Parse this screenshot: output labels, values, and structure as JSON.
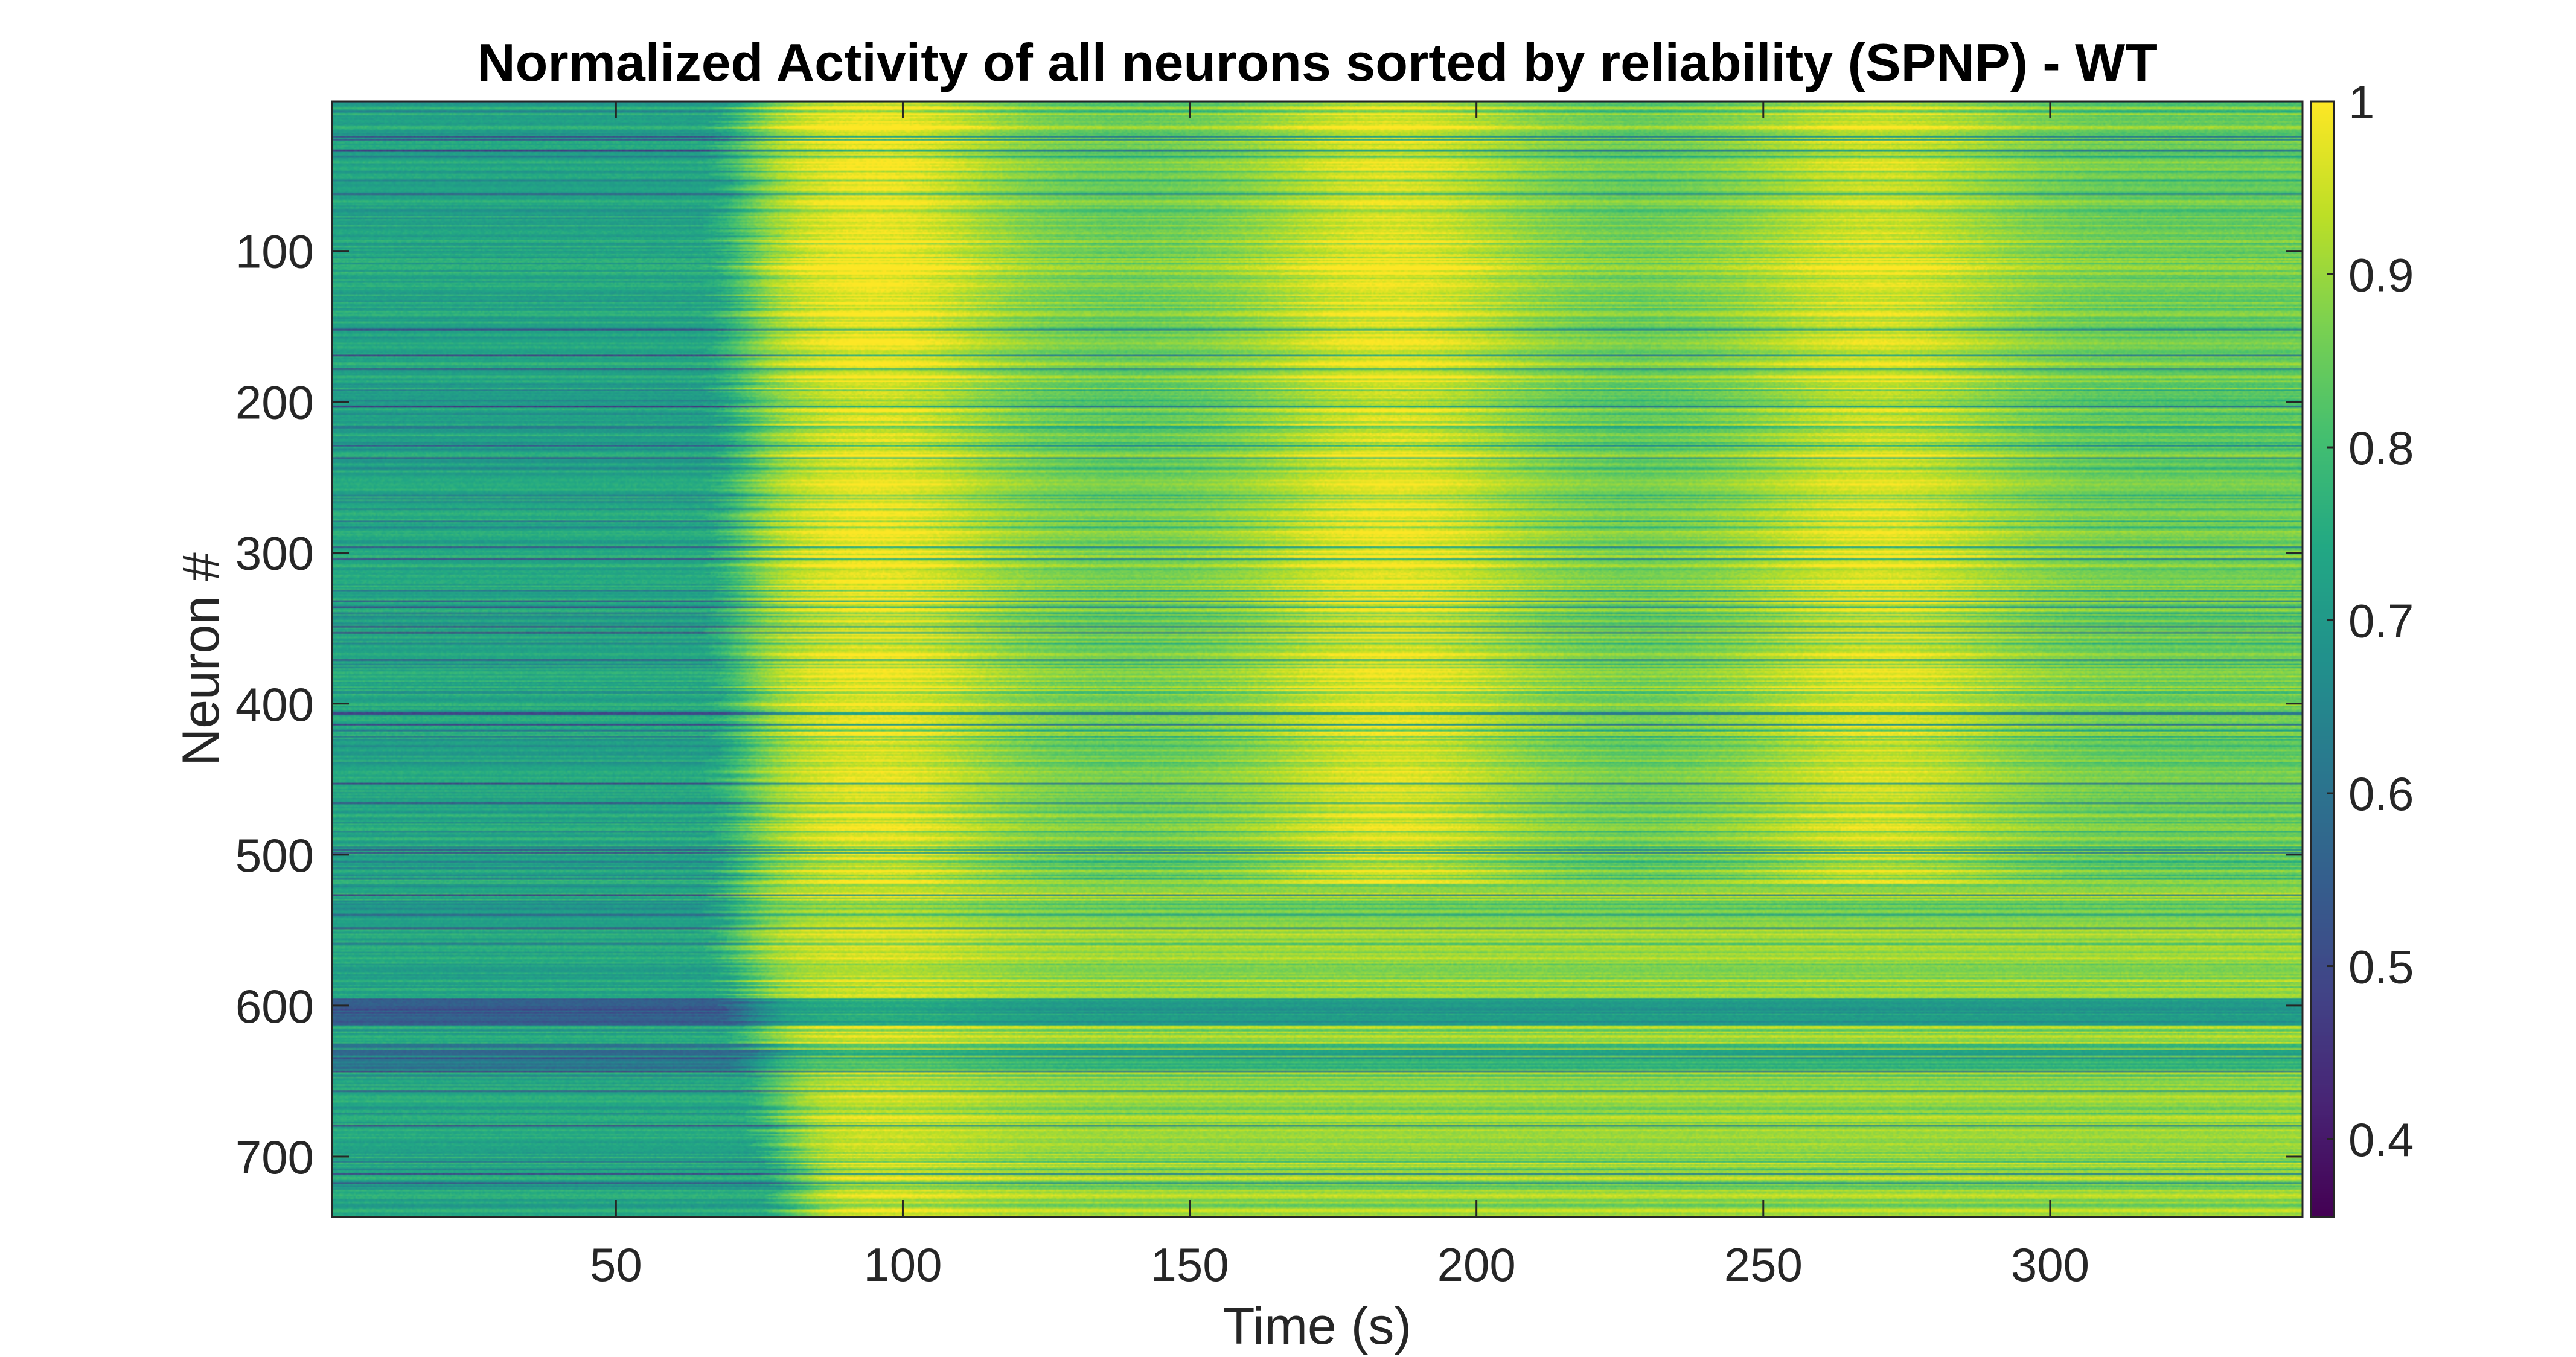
{
  "chart_data": {
    "type": "heatmap",
    "title": "Normalized Activity of all neurons sorted by reliability (SPNP) - WT",
    "xlabel": "Time (s)",
    "ylabel": "Neuron #",
    "xlim": [
      0.5,
      344
    ],
    "ylim": [
      1,
      740
    ],
    "y_reversed": true,
    "x_ticks": [
      50,
      100,
      150,
      200,
      250,
      300
    ],
    "y_ticks": [
      100,
      200,
      300,
      400,
      500,
      600,
      700
    ],
    "colorbar": {
      "colormap": "viridis",
      "clim": [
        0.355,
        1
      ],
      "ticks": [
        0.4,
        0.5,
        0.6,
        0.7,
        0.8,
        0.9,
        1
      ],
      "tick_labels": [
        "0.4",
        "0.5",
        "0.6",
        "0.7",
        "0.8",
        "0.9",
        "1"
      ]
    },
    "n_neurons": 740,
    "n_timepoints": 344,
    "activity_peaks_s": [
      95,
      185,
      270
    ],
    "dark_rows": [
      26,
      62,
      178,
      229,
      296,
      332,
      371,
      406,
      453,
      540,
      603,
      635,
      680,
      718
    ],
    "grid": false
  }
}
